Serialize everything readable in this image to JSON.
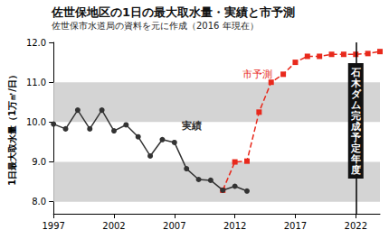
{
  "chart_data": {
    "type": "line",
    "title": "佐世保地区の1日の最大取水量・実績と市予測",
    "subtitle": "佐世保市水道局の資料を元に作成（2016 年現在）",
    "y_label": "1日最大取水量（1万㎥/日）",
    "series": [
      {
        "name": "実績",
        "color": "#333333",
        "marker": "circle",
        "line_style": "solid",
        "x": [
          1997,
          1998,
          1999,
          2000,
          2001,
          2002,
          2003,
          2004,
          2005,
          2006,
          2007,
          2008,
          2009,
          2010,
          2011,
          2012,
          2013
        ],
        "values": [
          9.95,
          9.83,
          10.3,
          9.83,
          10.3,
          9.78,
          9.93,
          9.63,
          9.15,
          9.56,
          9.49,
          8.83,
          8.56,
          8.54,
          8.29,
          8.39,
          8.27
        ]
      },
      {
        "name": "市予測",
        "color": "#e8291c",
        "marker": "square",
        "line_style": "dashed",
        "x": [
          2011,
          2012,
          2013,
          2014,
          2015,
          2016,
          2017,
          2018,
          2019,
          2020,
          2021,
          2022,
          2023,
          2024
        ],
        "values": [
          8.29,
          9.0,
          9.02,
          10.25,
          11.0,
          11.2,
          11.5,
          11.65,
          11.65,
          11.7,
          11.7,
          11.7,
          11.72,
          11.77
        ]
      }
    ],
    "xlim": [
      1997,
      2024
    ],
    "xticks": [
      1997,
      2002,
      2007,
      2012,
      2017,
      2022
    ],
    "ylim": [
      7.7,
      12
    ],
    "yticks": [
      {
        "value": 8,
        "label": "8.0"
      },
      {
        "value": 9,
        "label": "9.0"
      },
      {
        "value": 10,
        "label": "10.0"
      },
      {
        "value": 11,
        "label": "11.0"
      },
      {
        "value": 12,
        "label": "12.0"
      }
    ],
    "grid": true,
    "annotations": [
      {
        "text": "石木ダム完成予定年度",
        "x": 2022
      }
    ]
  }
}
